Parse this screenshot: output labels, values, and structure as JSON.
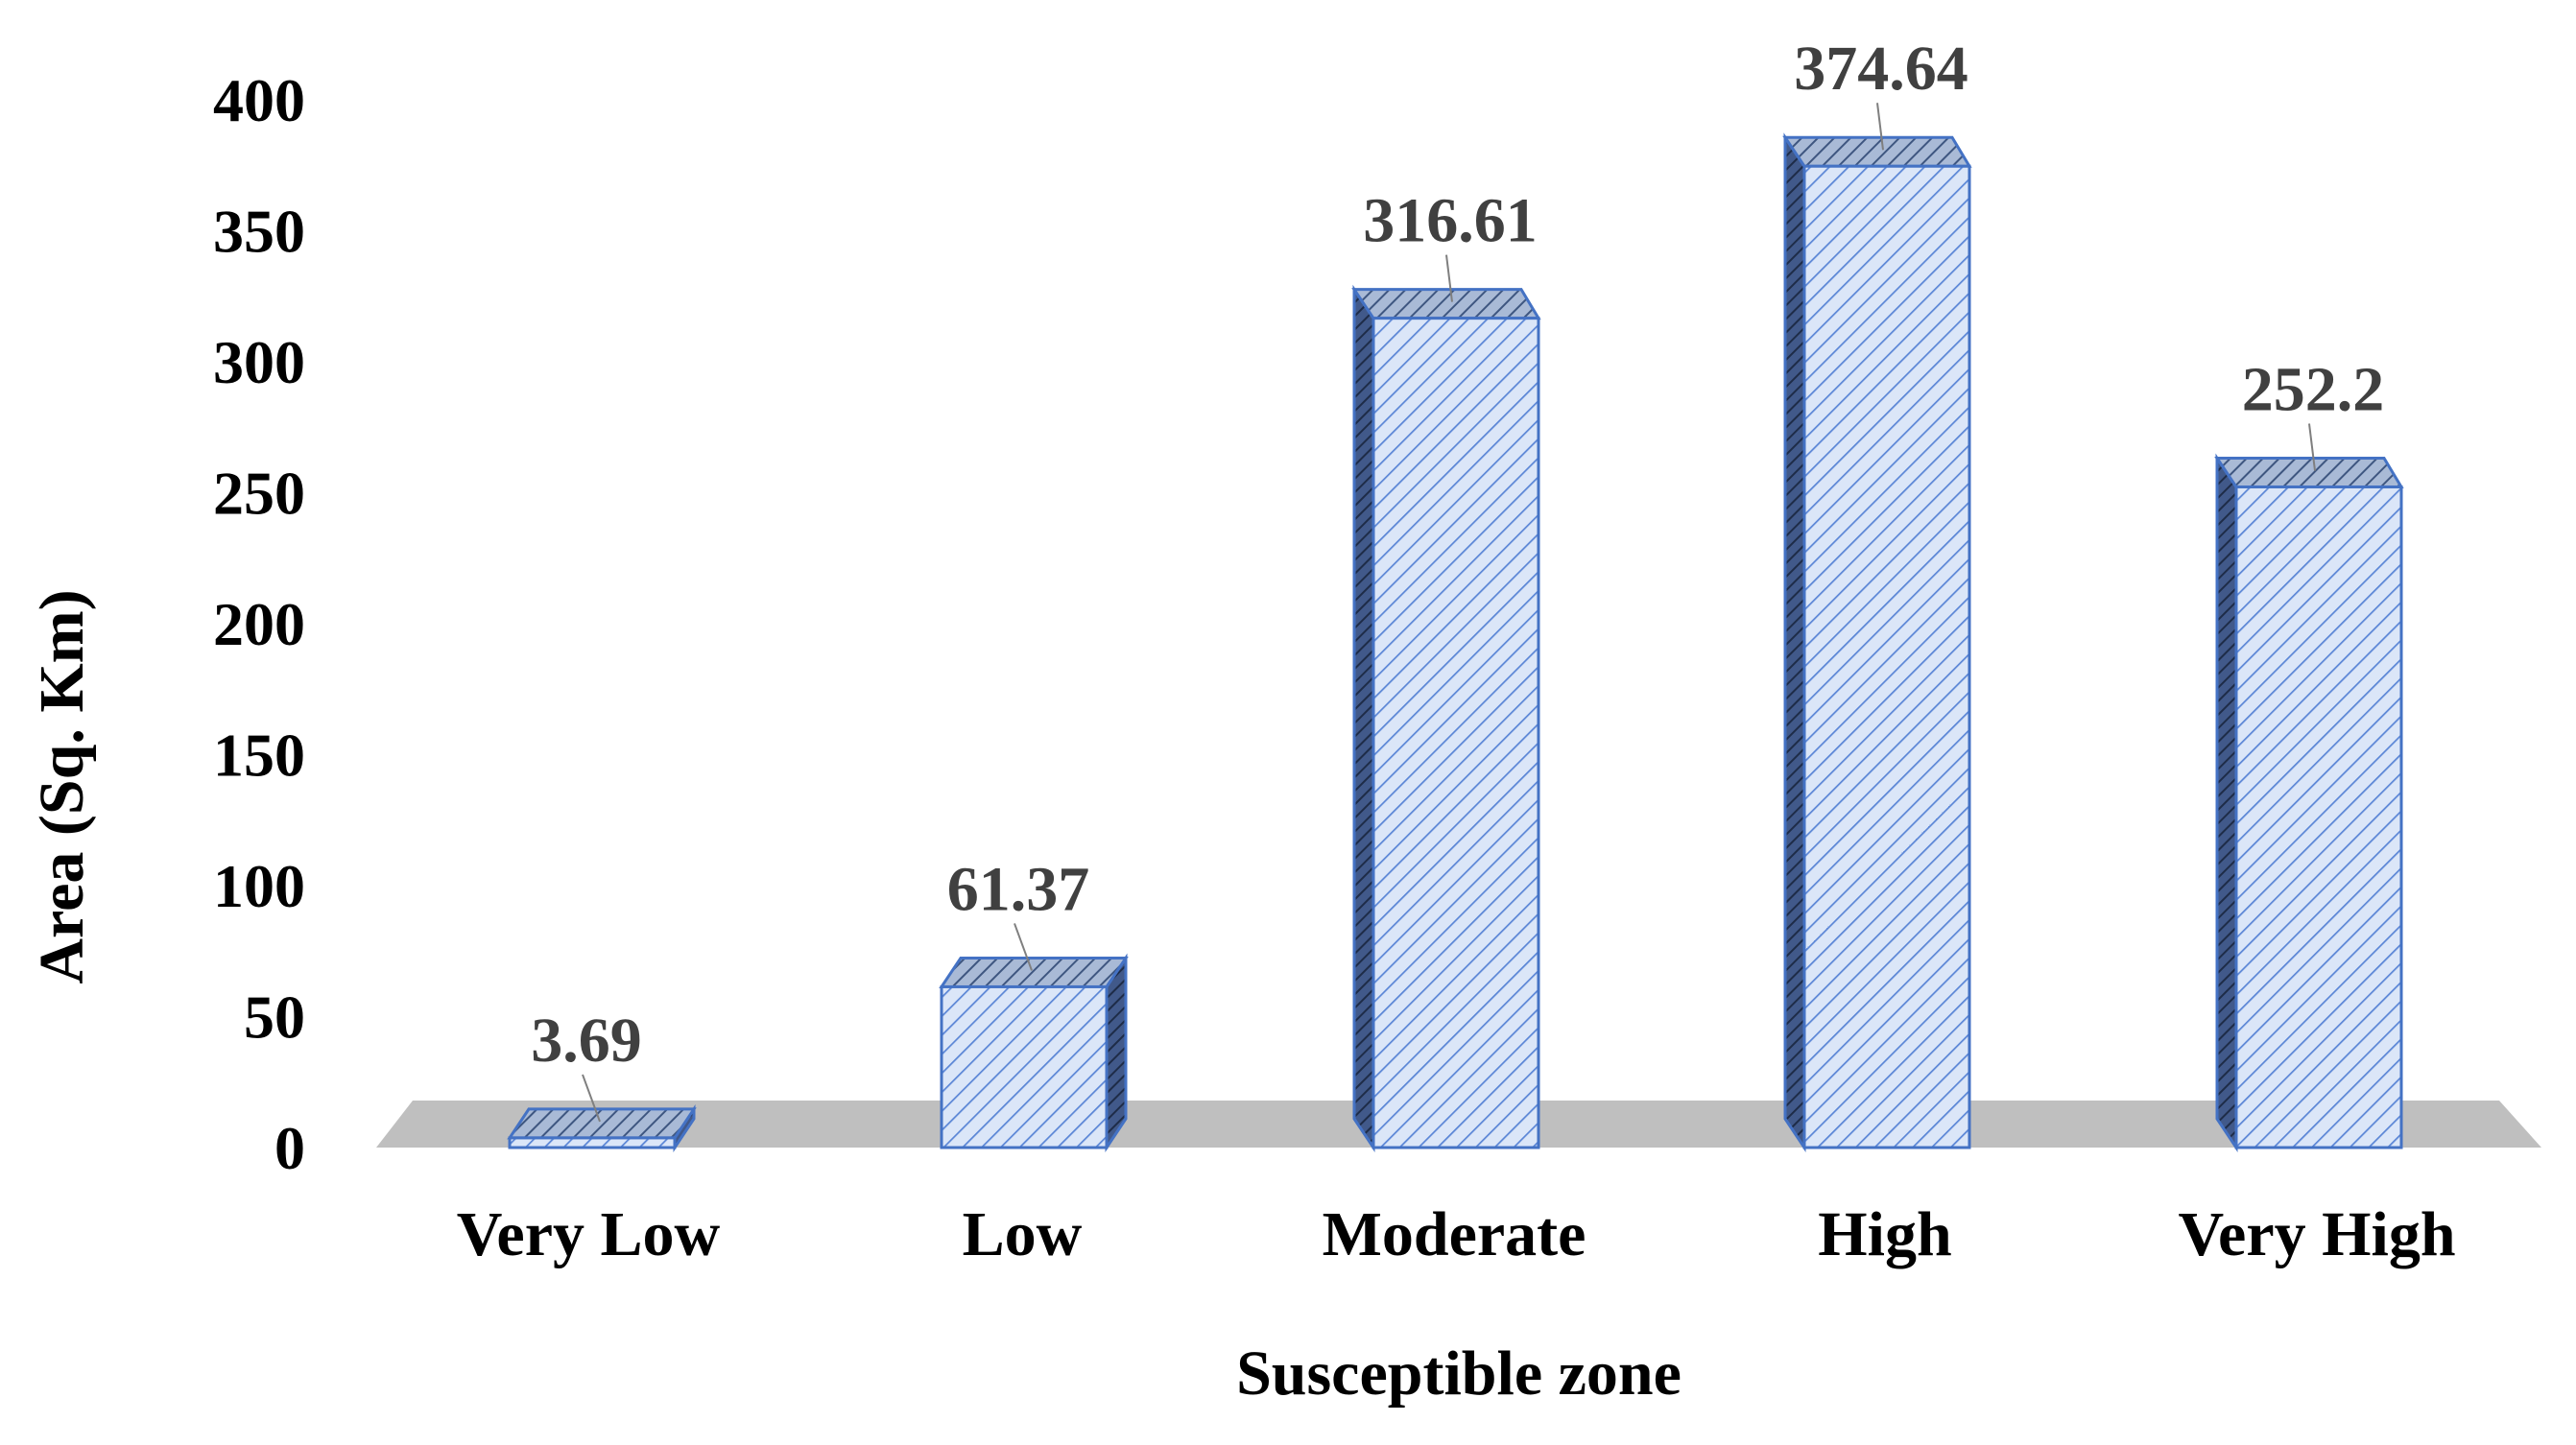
{
  "chart_data": {
    "type": "bar",
    "style": "3d-column",
    "title": "",
    "xlabel": "Susceptible zone",
    "ylabel": "Area (Sq. Km)",
    "categories": [
      "Very Low",
      "Low",
      "Moderate",
      "High",
      "Very High"
    ],
    "values": [
      3.69,
      61.37,
      316.61,
      374.64,
      252.2
    ],
    "data_labels": [
      "3.69",
      "61.37",
      "316.61",
      "374.64",
      "252.2"
    ],
    "yticks": [
      "0",
      "50",
      "100",
      "150",
      "200",
      "250",
      "300",
      "350",
      "400"
    ],
    "ylim": [
      0,
      400
    ],
    "grid": false,
    "legend": "none",
    "colors": {
      "bar_fill": "#dbe6f8",
      "bar_hatch": "#5b86d6",
      "bar_edge": "#4472c4",
      "bar_top": "#8fa6c9",
      "bar_side": "#2e4470",
      "floor": "#bfbfbf",
      "leader": "#7f7f7f"
    }
  }
}
